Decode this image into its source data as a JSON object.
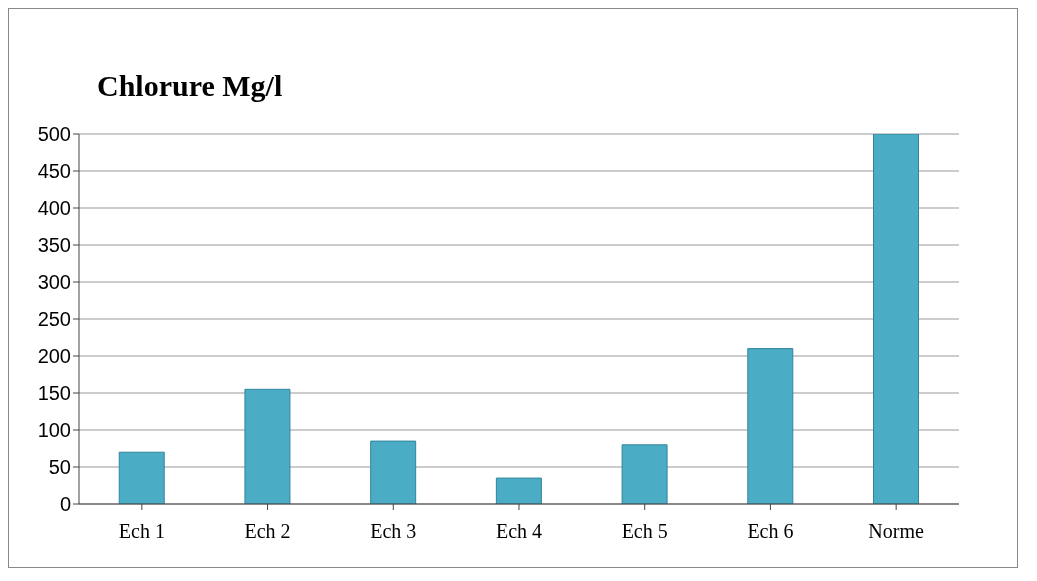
{
  "chart_data": {
    "type": "bar",
    "title": "Chlorure Mg/l",
    "categories": [
      "Ech 1",
      "Ech 2",
      "Ech 3",
      "Ech 4",
      "Ech 5",
      "Ech 6",
      "Norme"
    ],
    "values": [
      70,
      155,
      85,
      35,
      80,
      210,
      500
    ],
    "color": "#4bacc6",
    "ylim": [
      0,
      500
    ],
    "yticks": [
      0,
      50,
      100,
      150,
      200,
      250,
      300,
      350,
      400,
      450,
      500
    ],
    "grid": "y"
  }
}
